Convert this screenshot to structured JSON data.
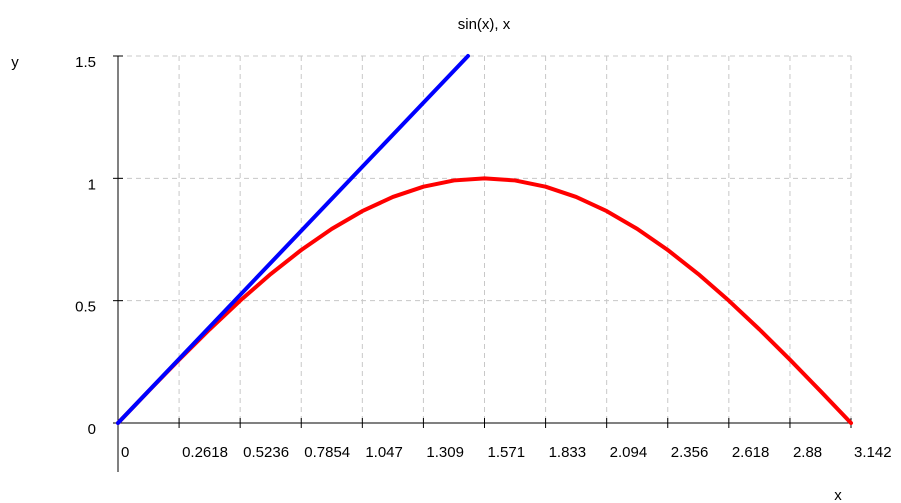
{
  "chart_data": {
    "type": "line",
    "title": "sin(x), x",
    "xlabel": "x",
    "ylabel": "y",
    "xlim": [
      0,
      3.1416
    ],
    "ylim": [
      0,
      1.5
    ],
    "grid": true,
    "x_ticks": [
      {
        "value": 0,
        "label": "0"
      },
      {
        "value": 0.2618,
        "label": "0.2618"
      },
      {
        "value": 0.5236,
        "label": "0.5236"
      },
      {
        "value": 0.7854,
        "label": "0.7854"
      },
      {
        "value": 1.0472,
        "label": "1.047"
      },
      {
        "value": 1.309,
        "label": "1.309"
      },
      {
        "value": 1.5708,
        "label": "1.571"
      },
      {
        "value": 1.8326,
        "label": "1.833"
      },
      {
        "value": 2.0944,
        "label": "2.094"
      },
      {
        "value": 2.3562,
        "label": "2.356"
      },
      {
        "value": 2.618,
        "label": "2.618"
      },
      {
        "value": 2.88,
        "label": "2.88"
      },
      {
        "value": 3.1416,
        "label": "3.142"
      }
    ],
    "y_ticks": [
      {
        "value": 0,
        "label": "0"
      },
      {
        "value": 0.5,
        "label": "0.5"
      },
      {
        "value": 1,
        "label": "1"
      },
      {
        "value": 1.5,
        "label": "1.5"
      }
    ],
    "series": [
      {
        "color": "#ff0000",
        "x": [
          0,
          0.1309,
          0.2618,
          0.3927,
          0.5236,
          0.6545,
          0.7854,
          0.9163,
          1.0472,
          1.1781,
          1.309,
          1.4399,
          1.5708,
          1.7017,
          1.8326,
          1.9635,
          2.0944,
          2.2253,
          2.3562,
          2.4871,
          2.618,
          2.7489,
          2.88,
          3.0107,
          3.1416
        ],
        "values": [
          0,
          0.1305,
          0.2588,
          0.3827,
          0.5,
          0.6088,
          0.7071,
          0.7934,
          0.866,
          0.9239,
          0.9659,
          0.9914,
          1,
          0.9914,
          0.9659,
          0.9239,
          0.866,
          0.7934,
          0.7071,
          0.6088,
          0.5,
          0.3827,
          0.2588,
          0.1305,
          0
        ]
      },
      {
        "color": "#0000ff",
        "x": [
          0,
          1.5
        ],
        "values": [
          0,
          1.5
        ]
      }
    ]
  }
}
